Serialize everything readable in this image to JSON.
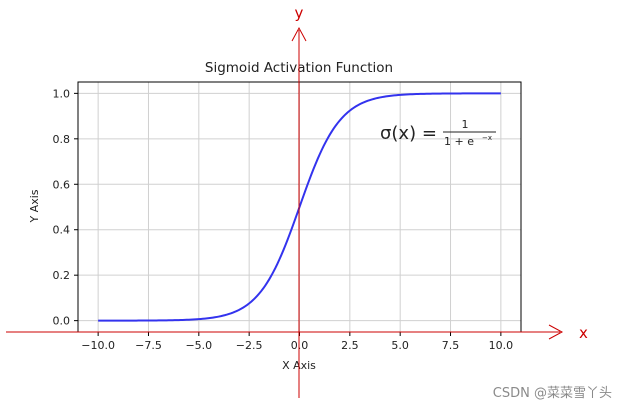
{
  "chart_data": {
    "type": "line",
    "title": "Sigmoid Activation Function",
    "xlabel": "X Axis",
    "ylabel": "Y Axis",
    "xlim": [
      -11,
      11
    ],
    "ylim": [
      -0.05,
      1.05
    ],
    "xticks": [
      -10.0,
      -7.5,
      -5.0,
      -2.5,
      0.0,
      2.5,
      5.0,
      7.5,
      10.0
    ],
    "xtick_labels": [
      "−10.0",
      "−7.5",
      "−5.0",
      "−2.5",
      "0.0",
      "2.5",
      "5.0",
      "7.5",
      "10.0"
    ],
    "yticks": [
      0.0,
      0.2,
      0.4,
      0.6,
      0.8,
      1.0
    ],
    "ytick_labels": [
      "0.0",
      "0.2",
      "0.4",
      "0.6",
      "0.8",
      "1.0"
    ],
    "grid": true,
    "series": [
      {
        "function": "1/(1+exp(-x))",
        "x_range": [
          -10,
          10
        ],
        "color": "#3333ee",
        "x": [
          -10,
          -8,
          -6,
          -5,
          -4,
          -3,
          -2.5,
          -2,
          -1.5,
          -1,
          -0.5,
          0,
          0.5,
          1,
          1.5,
          2,
          2.5,
          3,
          4,
          5,
          6,
          8,
          10
        ],
        "values": [
          0.0,
          0.0003,
          0.0025,
          0.0067,
          0.018,
          0.047,
          0.076,
          0.119,
          0.182,
          0.269,
          0.378,
          0.5,
          0.622,
          0.731,
          0.818,
          0.881,
          0.924,
          0.953,
          0.982,
          0.993,
          0.998,
          0.9997,
          1.0
        ]
      }
    ],
    "annotation": {
      "lhs": "σ(x) =",
      "numerator": "1",
      "denominator": "1 + e",
      "exponent": "−x"
    },
    "origin_axes": {
      "color": "#cc0000",
      "x_label": "x",
      "y_label": "y"
    }
  },
  "watermark": "CSDN @菜菜雪丫头"
}
